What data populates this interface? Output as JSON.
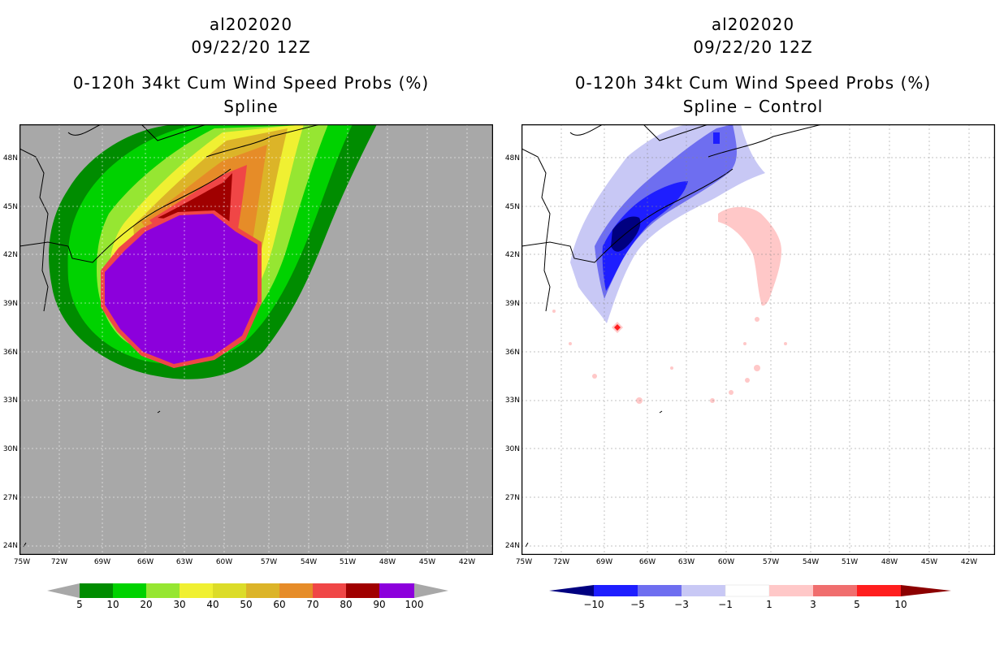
{
  "left_panel": {
    "storm_id": "al202020",
    "datetime": "09/22/20 12Z",
    "product": "0-120h 34kt Cum Wind Speed Probs (%)",
    "subtitle": "Spline",
    "colorbar_labels": [
      "5",
      "10",
      "20",
      "30",
      "40",
      "50",
      "60",
      "70",
      "80",
      "90",
      "100"
    ],
    "colors": [
      "#008c00",
      "#00d200",
      "#96e632",
      "#f0f032",
      "#dcdc28",
      "#dcb428",
      "#e68c28",
      "#f04646",
      "#a00000",
      "#8c00dc"
    ]
  },
  "right_panel": {
    "storm_id": "al202020",
    "datetime": "09/22/20 12Z",
    "product": "0-120h 34kt Cum Wind Speed Probs (%)",
    "subtitle": "Spline – Control",
    "colorbar_labels": [
      "−10",
      "−5",
      "−3",
      "−1",
      "1",
      "3",
      "5",
      "10"
    ],
    "colors": [
      "#000080",
      "#1e1eff",
      "#6e6ef0",
      "#c8c8f5",
      "#ffffff",
      "#ffc8c8",
      "#f06e6e",
      "#ff1e1e",
      "#8c0000"
    ]
  },
  "axes": {
    "lat_labels": [
      "48N",
      "45N",
      "42N",
      "39N",
      "36N",
      "33N",
      "30N",
      "27N",
      "24N"
    ],
    "lon_labels": [
      "75W",
      "72W",
      "69W",
      "66W",
      "63W",
      "60W",
      "57W",
      "54W",
      "51W",
      "48W",
      "45W",
      "42W"
    ]
  }
}
